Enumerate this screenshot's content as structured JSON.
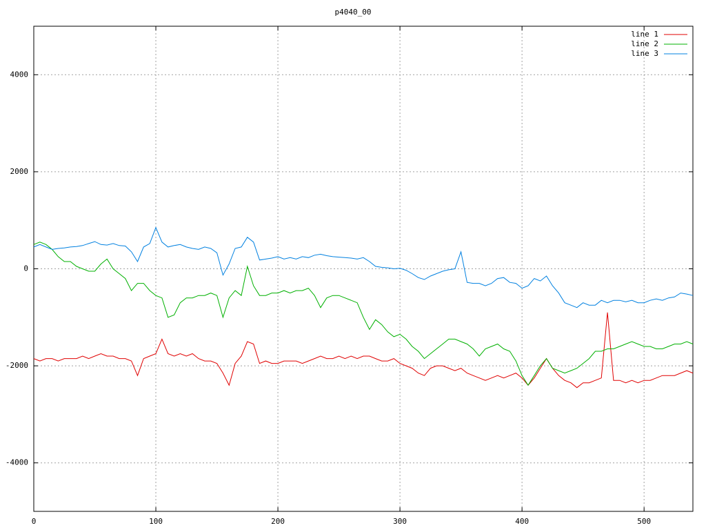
{
  "chart_data": {
    "type": "line",
    "title": "p4040_00",
    "x": [
      0,
      5,
      10,
      15,
      20,
      25,
      30,
      35,
      40,
      45,
      50,
      55,
      60,
      65,
      70,
      75,
      80,
      85,
      90,
      95,
      100,
      105,
      110,
      115,
      120,
      125,
      130,
      135,
      140,
      145,
      150,
      155,
      160,
      165,
      170,
      175,
      180,
      185,
      190,
      195,
      200,
      205,
      210,
      215,
      220,
      225,
      230,
      235,
      240,
      245,
      250,
      255,
      260,
      265,
      270,
      275,
      280,
      285,
      290,
      295,
      300,
      305,
      310,
      315,
      320,
      325,
      330,
      335,
      340,
      345,
      350,
      355,
      360,
      365,
      370,
      375,
      380,
      385,
      390,
      395,
      400,
      405,
      410,
      415,
      420,
      425,
      430,
      435,
      440,
      445,
      450,
      455,
      460,
      465,
      470,
      475,
      480,
      485,
      490,
      495,
      500,
      505,
      510,
      515,
      520,
      525,
      530,
      535,
      540
    ],
    "series": [
      {
        "name": "line 1",
        "color": "#e00000",
        "values": [
          -1850,
          -1900,
          -1850,
          -1850,
          -1900,
          -1850,
          -1850,
          -1850,
          -1800,
          -1850,
          -1800,
          -1750,
          -1800,
          -1800,
          -1850,
          -1850,
          -1900,
          -2200,
          -1850,
          -1800,
          -1750,
          -1450,
          -1750,
          -1800,
          -1750,
          -1800,
          -1750,
          -1850,
          -1900,
          -1900,
          -1950,
          -2150,
          -2400,
          -1950,
          -1800,
          -1500,
          -1550,
          -1950,
          -1900,
          -1950,
          -1950,
          -1900,
          -1900,
          -1900,
          -1950,
          -1900,
          -1850,
          -1800,
          -1850,
          -1850,
          -1800,
          -1850,
          -1800,
          -1850,
          -1800,
          -1800,
          -1850,
          -1900,
          -1900,
          -1850,
          -1950,
          -2000,
          -2050,
          -2150,
          -2200,
          -2050,
          -2000,
          -2000,
          -2050,
          -2100,
          -2050,
          -2150,
          -2200,
          -2250,
          -2300,
          -2250,
          -2200,
          -2250,
          -2200,
          -2150,
          -2250,
          -2400,
          -2250,
          -2050,
          -1850,
          -2050,
          -2200,
          -2300,
          -2350,
          -2450,
          -2350,
          -2350,
          -2300,
          -2250,
          -900,
          -2300,
          -2300,
          -2350,
          -2300,
          -2350,
          -2300,
          -2300,
          -2250,
          -2200,
          -2200,
          -2200,
          -2150,
          -2100,
          -2150
        ]
      },
      {
        "name": "line 2",
        "color": "#00b000",
        "values": [
          500,
          550,
          500,
          400,
          250,
          150,
          150,
          50,
          0,
          -50,
          -50,
          100,
          200,
          0,
          -100,
          -200,
          -450,
          -300,
          -300,
          -450,
          -550,
          -600,
          -1000,
          -950,
          -700,
          -600,
          -600,
          -550,
          -550,
          -500,
          -550,
          -1000,
          -600,
          -450,
          -550,
          50,
          -350,
          -550,
          -550,
          -500,
          -500,
          -450,
          -500,
          -450,
          -450,
          -400,
          -550,
          -800,
          -600,
          -550,
          -550,
          -600,
          -650,
          -700,
          -1000,
          -1250,
          -1050,
          -1150,
          -1300,
          -1400,
          -1350,
          -1450,
          -1600,
          -1700,
          -1850,
          -1750,
          -1650,
          -1550,
          -1450,
          -1450,
          -1500,
          -1550,
          -1650,
          -1800,
          -1650,
          -1600,
          -1550,
          -1650,
          -1700,
          -1900,
          -2200,
          -2400,
          -2200,
          -2000,
          -1850,
          -2050,
          -2100,
          -2150,
          -2100,
          -2050,
          -1950,
          -1850,
          -1700,
          -1700,
          -1650,
          -1650,
          -1600,
          -1550,
          -1500,
          -1550,
          -1600,
          -1600,
          -1650,
          -1650,
          -1600,
          -1550,
          -1550,
          -1500,
          -1550
        ]
      },
      {
        "name": "line 3",
        "color": "#0080e0",
        "values": [
          450,
          500,
          450,
          400,
          420,
          430,
          450,
          460,
          480,
          520,
          560,
          500,
          490,
          520,
          480,
          470,
          350,
          150,
          450,
          520,
          850,
          550,
          450,
          480,
          500,
          450,
          420,
          400,
          450,
          420,
          330,
          -130,
          100,
          420,
          450,
          650,
          550,
          180,
          200,
          220,
          250,
          200,
          230,
          200,
          250,
          230,
          280,
          300,
          270,
          250,
          240,
          230,
          220,
          200,
          230,
          150,
          50,
          30,
          20,
          0,
          10,
          -30,
          -100,
          -180,
          -220,
          -150,
          -100,
          -50,
          -20,
          0,
          350,
          -280,
          -300,
          -300,
          -350,
          -300,
          -200,
          -180,
          -280,
          -300,
          -400,
          -350,
          -200,
          -250,
          -150,
          -350,
          -500,
          -700,
          -750,
          -800,
          -700,
          -750,
          -750,
          -650,
          -700,
          -650,
          -650,
          -680,
          -650,
          -700,
          -700,
          -650,
          -620,
          -650,
          -600,
          -580,
          -500,
          -520,
          -550
        ]
      }
    ],
    "xlim": [
      0,
      540
    ],
    "xticks": [
      0,
      100,
      200,
      300,
      400,
      500
    ],
    "ylim": [
      -5000,
      5000
    ],
    "yticks": [
      -4000,
      -2000,
      0,
      2000,
      4000
    ],
    "grid": true,
    "legend": "top-right"
  }
}
